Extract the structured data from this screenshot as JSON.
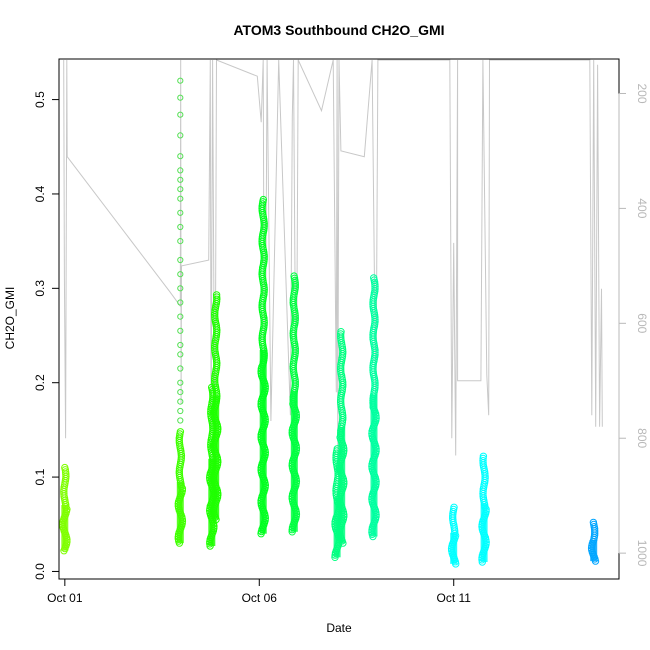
{
  "chart_data": {
    "type": "scatter",
    "title": "ATOM3 Southbound CH2O_GMI",
    "xlabel": "Date",
    "ylabel": "CH2O_GMI",
    "x_ticks": [
      {
        "day": 1,
        "label": "Oct 01"
      },
      {
        "day": 6,
        "label": "Oct 06"
      },
      {
        "day": 11,
        "label": "Oct 11"
      }
    ],
    "xlim": [
      0.85,
      15.25
    ],
    "ylim": [
      -0.008,
      0.543
    ],
    "y_ticks": [
      0.0,
      0.1,
      0.2,
      0.3,
      0.4,
      0.5
    ],
    "y_tick_labels": [
      "0.0",
      "0.1",
      "0.2",
      "0.3",
      "0.4",
      "0.5"
    ],
    "y2_ticks": [
      200,
      400,
      600,
      800,
      1000
    ],
    "y2_tick_labels": [
      "200",
      "400",
      "600",
      "800",
      "1000"
    ],
    "y2_lim_reversed": [
      1045,
      140
    ],
    "series": [
      {
        "color": "#7fff00",
        "segments": [
          {
            "day": 1.0,
            "ymin": 0.022,
            "ymax": 0.11,
            "width": 0.06
          }
        ]
      },
      {
        "color": "#3fff00",
        "segments": [
          {
            "day": 3.97,
            "ymin": 0.03,
            "ymax": 0.148,
            "width": 0.05
          }
        ]
      },
      {
        "color": "#1fff00",
        "segments": [
          {
            "day": 4.78,
            "ymin": 0.027,
            "ymax": 0.195,
            "width": 0.08
          },
          {
            "day": 4.88,
            "ymin": 0.055,
            "ymax": 0.293,
            "width": 0.08
          }
        ]
      },
      {
        "color": "#00ff20",
        "segments": [
          {
            "day": 6.1,
            "ymin": 0.04,
            "ymax": 0.394,
            "width": 0.08
          }
        ]
      },
      {
        "color": "#00ff40",
        "segments": [
          {
            "day": 6.9,
            "ymin": 0.042,
            "ymax": 0.313,
            "width": 0.12
          }
        ]
      },
      {
        "color": "#00ff80",
        "segments": [
          {
            "day": 8.0,
            "ymin": 0.015,
            "ymax": 0.13,
            "width": 0.14
          },
          {
            "day": 8.12,
            "ymin": 0.03,
            "ymax": 0.254,
            "width": 0.06
          }
        ]
      },
      {
        "color": "#00ffa0",
        "segments": [
          {
            "day": 8.95,
            "ymin": 0.037,
            "ymax": 0.311,
            "width": 0.07
          }
        ]
      },
      {
        "color": "#00ffff",
        "segments": [
          {
            "day": 11.0,
            "ymin": 0.008,
            "ymax": 0.068,
            "width": 0.12
          },
          {
            "day": 11.78,
            "ymin": 0.01,
            "ymax": 0.122,
            "width": 0.14
          }
        ]
      },
      {
        "color": "#00a5ff",
        "segments": [
          {
            "day": 14.6,
            "ymin": 0.011,
            "ymax": 0.052,
            "width": 0.18
          }
        ]
      }
    ],
    "sparse_points": {
      "color": "#55e055",
      "day": 3.97,
      "values": [
        0.52,
        0.502,
        0.484,
        0.462,
        0.44,
        0.425,
        0.415,
        0.405,
        0.395,
        0.38,
        0.365,
        0.35,
        0.33,
        0.315,
        0.3,
        0.285,
        0.27,
        0.255,
        0.24,
        0.23,
        0.215,
        0.2,
        0.19,
        0.18,
        0.17,
        0.16
      ]
    },
    "pressure_profile": {
      "color": "#c8c8c8",
      "points": [
        [
          0.97,
          140
        ],
        [
          0.99,
          520
        ],
        [
          1.02,
          800
        ],
        [
          1.05,
          140
        ],
        [
          1.06,
          310
        ],
        [
          3.7,
          545
        ],
        [
          3.97,
          570
        ],
        [
          3.98,
          140
        ],
        [
          3.99,
          740
        ],
        [
          4.0,
          500
        ],
        [
          4.7,
          490
        ],
        [
          4.74,
          140
        ],
        [
          4.76,
          790
        ],
        [
          4.8,
          140
        ],
        [
          4.86,
          880
        ],
        [
          4.9,
          140
        ],
        [
          5.95,
          170
        ],
        [
          6.05,
          250
        ],
        [
          6.1,
          140
        ],
        [
          6.14,
          900
        ],
        [
          6.2,
          140
        ],
        [
          6.3,
          770
        ],
        [
          6.5,
          140
        ],
        [
          6.8,
          760
        ],
        [
          6.85,
          240
        ],
        [
          6.88,
          140
        ],
        [
          6.95,
          820
        ],
        [
          7.0,
          140
        ],
        [
          7.6,
          230
        ],
        [
          7.9,
          140
        ],
        [
          7.98,
          720
        ],
        [
          8.0,
          140
        ],
        [
          8.02,
          830
        ],
        [
          8.05,
          140
        ],
        [
          8.1,
          300
        ],
        [
          8.7,
          310
        ],
        [
          8.9,
          140
        ],
        [
          9.0,
          760
        ],
        [
          9.05,
          140
        ],
        [
          10.9,
          140
        ],
        [
          10.95,
          800
        ],
        [
          11.0,
          460
        ],
        [
          11.05,
          830
        ],
        [
          11.1,
          140
        ],
        [
          11.1,
          700
        ],
        [
          11.7,
          700
        ],
        [
          11.75,
          140
        ],
        [
          11.85,
          690
        ],
        [
          11.9,
          760
        ],
        [
          11.92,
          140
        ],
        [
          14.5,
          140
        ],
        [
          14.55,
          760
        ],
        [
          14.6,
          140
        ],
        [
          14.65,
          780
        ],
        [
          14.7,
          150
        ],
        [
          14.75,
          780
        ],
        [
          14.8,
          540
        ],
        [
          14.82,
          780
        ]
      ]
    }
  }
}
